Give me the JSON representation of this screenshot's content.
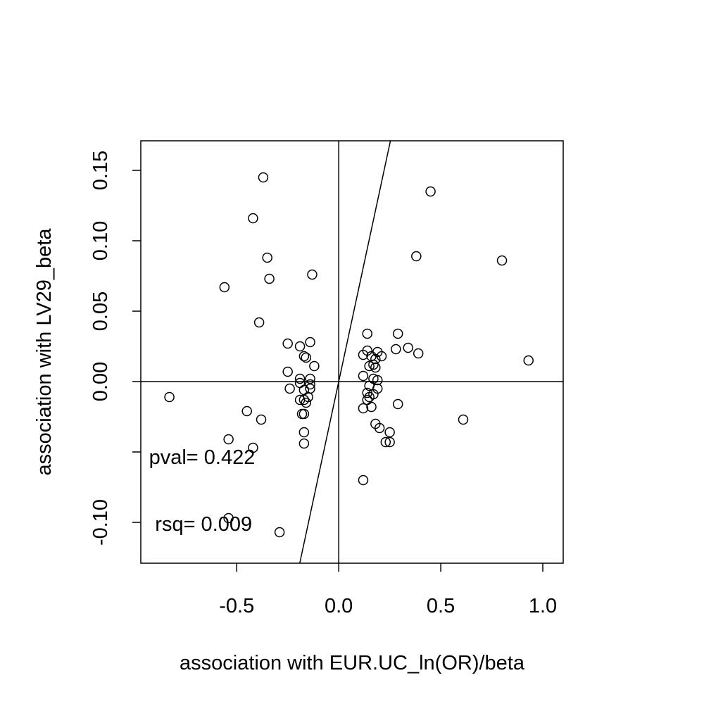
{
  "chart_data": {
    "type": "scatter",
    "xlabel": "association with EUR.UC_ln(OR)/beta",
    "ylabel": "association with LV29_beta",
    "xlim": [
      -0.97,
      1.1
    ],
    "ylim": [
      -0.129,
      0.171
    ],
    "xticks": [
      {
        "value": -0.5,
        "label": "-0.5"
      },
      {
        "value": 0.0,
        "label": "0.0"
      },
      {
        "value": 0.5,
        "label": "0.5"
      },
      {
        "value": 1.0,
        "label": "1.0"
      }
    ],
    "yticks": [
      {
        "value": -0.1,
        "label": "-0.10"
      },
      {
        "value": -0.05,
        "label": ""
      },
      {
        "value": 0.0,
        "label": "0.00"
      },
      {
        "value": 0.05,
        "label": "0.05"
      },
      {
        "value": 0.1,
        "label": "0.10"
      },
      {
        "value": 0.15,
        "label": "0.15"
      }
    ],
    "grid": false,
    "reference_lines": {
      "x_zero": true,
      "y_zero": true
    },
    "fit_line": {
      "intercept": 0,
      "slope": 0.675
    },
    "annotations": [
      {
        "text": "pval= 0.422",
        "x": -0.93,
        "y": -0.0535
      },
      {
        "text": "rsq= 0.009",
        "x": -0.9,
        "y": -0.101
      }
    ],
    "points": [
      [
        -0.37,
        0.145
      ],
      [
        -0.42,
        0.116
      ],
      [
        -0.35,
        0.088
      ],
      [
        -0.34,
        0.073
      ],
      [
        -0.13,
        0.076
      ],
      [
        -0.56,
        0.067
      ],
      [
        -0.39,
        0.042
      ],
      [
        -0.25,
        0.027
      ],
      [
        -0.19,
        0.025
      ],
      [
        -0.14,
        0.028
      ],
      [
        -0.17,
        0.018
      ],
      [
        -0.16,
        0.017
      ],
      [
        -0.12,
        0.011
      ],
      [
        -0.25,
        0.007
      ],
      [
        -0.19,
        0.002
      ],
      [
        -0.14,
        0.002
      ],
      [
        -0.19,
        -0.001
      ],
      [
        -0.14,
        -0.002
      ],
      [
        -0.24,
        -0.005
      ],
      [
        -0.17,
        -0.006
      ],
      [
        -0.14,
        -0.005
      ],
      [
        -0.15,
        -0.011
      ],
      [
        -0.19,
        -0.013
      ],
      [
        -0.17,
        -0.013
      ],
      [
        -0.16,
        -0.015
      ],
      [
        -0.18,
        -0.023
      ],
      [
        -0.17,
        -0.023
      ],
      [
        -0.83,
        -0.011
      ],
      [
        -0.45,
        -0.021
      ],
      [
        -0.38,
        -0.027
      ],
      [
        -0.54,
        -0.041
      ],
      [
        -0.42,
        -0.047
      ],
      [
        -0.17,
        -0.036
      ],
      [
        -0.17,
        -0.044
      ],
      [
        -0.54,
        -0.097
      ],
      [
        -0.29,
        -0.107
      ],
      [
        0.45,
        0.135
      ],
      [
        0.38,
        0.089
      ],
      [
        0.8,
        0.086
      ],
      [
        0.14,
        0.034
      ],
      [
        0.29,
        0.034
      ],
      [
        0.34,
        0.024
      ],
      [
        0.28,
        0.023
      ],
      [
        0.39,
        0.02
      ],
      [
        0.14,
        0.022
      ],
      [
        0.19,
        0.021
      ],
      [
        0.12,
        0.019
      ],
      [
        0.16,
        0.018
      ],
      [
        0.21,
        0.018
      ],
      [
        0.18,
        0.016
      ],
      [
        0.93,
        0.015
      ],
      [
        0.15,
        0.011
      ],
      [
        0.17,
        0.012
      ],
      [
        0.18,
        0.01
      ],
      [
        0.12,
        0.004
      ],
      [
        0.17,
        0.002
      ],
      [
        0.19,
        0.001
      ],
      [
        0.15,
        -0.003
      ],
      [
        0.19,
        -0.005
      ],
      [
        0.14,
        -0.008
      ],
      [
        0.17,
        -0.009
      ],
      [
        0.15,
        -0.011
      ],
      [
        0.14,
        -0.013
      ],
      [
        0.29,
        -0.016
      ],
      [
        0.16,
        -0.018
      ],
      [
        0.12,
        -0.019
      ],
      [
        0.61,
        -0.027
      ],
      [
        0.18,
        -0.03
      ],
      [
        0.2,
        -0.033
      ],
      [
        0.25,
        -0.036
      ],
      [
        0.23,
        -0.043
      ],
      [
        0.25,
        -0.043
      ],
      [
        0.12,
        -0.07
      ]
    ]
  }
}
